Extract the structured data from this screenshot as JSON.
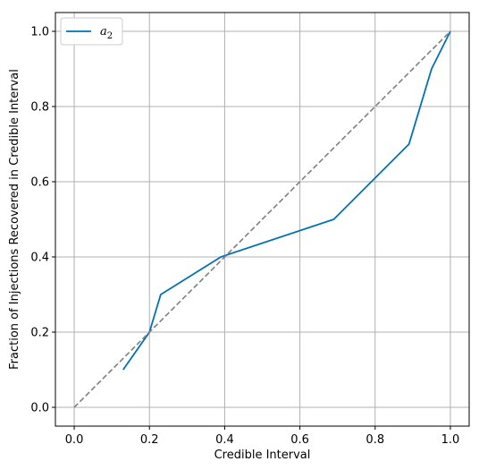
{
  "chart_data": {
    "type": "line",
    "xlabel": "Credible Interval",
    "ylabel": "Fraction of Injections Recovered in Credible Interval",
    "xlim": [
      -0.05,
      1.05
    ],
    "ylim": [
      -0.05,
      1.05
    ],
    "xticks": [
      0.0,
      0.2,
      0.4,
      0.6,
      0.8,
      1.0
    ],
    "yticks": [
      0.0,
      0.2,
      0.4,
      0.6,
      0.8,
      1.0
    ],
    "xtick_labels": [
      "0.0",
      "0.2",
      "0.4",
      "0.6",
      "0.8",
      "1.0"
    ],
    "ytick_labels": [
      "0.0",
      "0.2",
      "0.4",
      "0.6",
      "0.8",
      "1.0"
    ],
    "grid": true,
    "legend": {
      "position": "upper-left",
      "entries": [
        {
          "label_base": "a",
          "label_sub": "2",
          "color": "#0072b2"
        }
      ]
    },
    "series": [
      {
        "name": "a2",
        "color": "#0072b2",
        "style": "solid",
        "x": [
          0.13,
          0.2,
          0.23,
          0.39,
          0.69,
          0.89,
          0.95,
          1.0
        ],
        "y": [
          0.1,
          0.2,
          0.3,
          0.4,
          0.5,
          0.7,
          0.9,
          1.0
        ]
      },
      {
        "color": "#7f7f7f",
        "style": "dashed",
        "x": [
          0.0,
          1.0
        ],
        "y": [
          0.0,
          1.0
        ]
      }
    ]
  }
}
